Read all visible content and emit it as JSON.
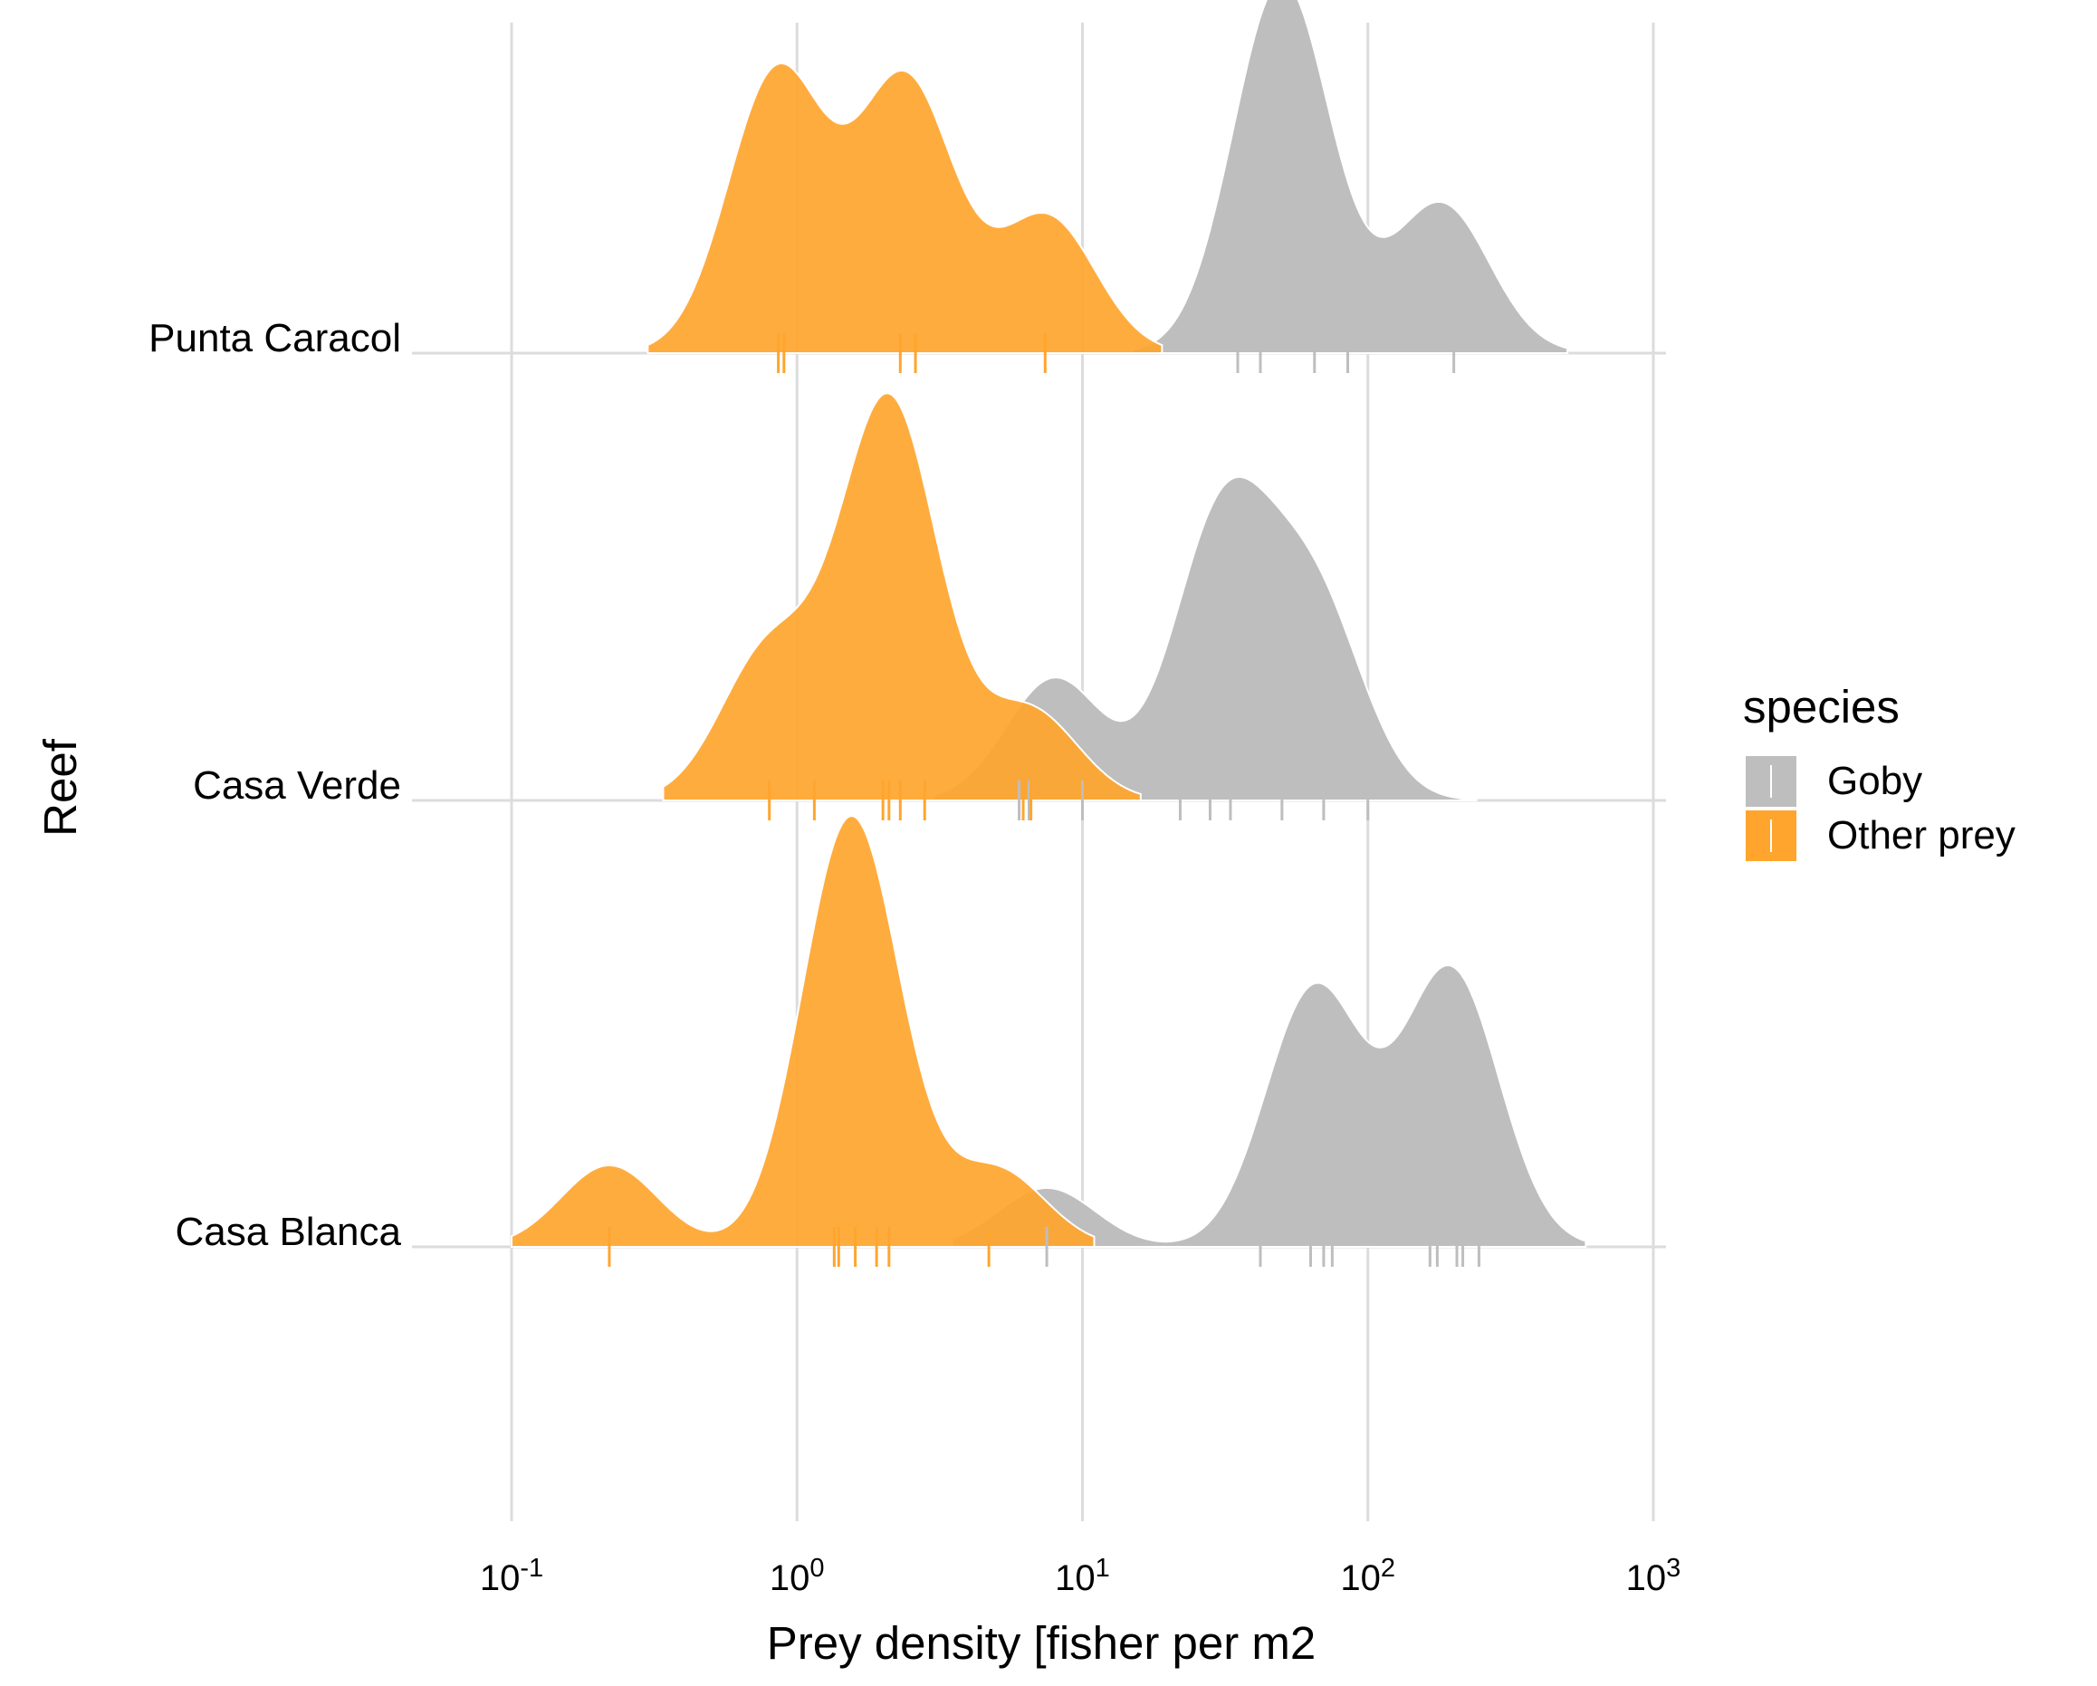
{
  "chart_data": {
    "type": "ridgeline",
    "title": "",
    "xlabel": "Prey density [fisher per m2",
    "ylabel": "Reef",
    "x_scale": "log10",
    "xlim": [
      0.1,
      1000
    ],
    "x_ticks": [
      {
        "value": 0.1,
        "base": "10",
        "exp": "-1"
      },
      {
        "value": 1,
        "base": "10",
        "exp": "0"
      },
      {
        "value": 10,
        "base": "10",
        "exp": "1"
      },
      {
        "value": 100,
        "base": "10",
        "exp": "2"
      },
      {
        "value": 1000,
        "base": "10",
        "exp": "3"
      }
    ],
    "grid": true,
    "legend": {
      "title": "species",
      "position": "right",
      "entries": [
        {
          "label": "Goby",
          "color": "#bebebe"
        },
        {
          "label": "Other prey",
          "color": "#ffa52e"
        }
      ]
    },
    "colors": {
      "Goby": "#bebebe",
      "Other prey": "#ffa52e",
      "gridline": "#dcdcdc"
    },
    "reefs": [
      {
        "name": "Punta Caracol",
        "series": [
          {
            "species": "Goby",
            "density_peaks": [
              {
                "x": 50,
                "h": 0.82
              },
              {
                "x": 180,
                "h": 0.33
              }
            ],
            "range": [
              15,
              500
            ],
            "rug": [
              35,
              42,
              65,
              85,
              200
            ]
          },
          {
            "species": "Other prey",
            "density_peaks": [
              {
                "x": 0.85,
                "h": 0.62
              },
              {
                "x": 2.4,
                "h": 0.6
              },
              {
                "x": 7.5,
                "h": 0.3
              }
            ],
            "range": [
              0.3,
              19
            ],
            "rug": [
              0.86,
              0.9,
              2.3,
              2.6,
              7.4
            ]
          }
        ]
      },
      {
        "name": "Casa Verde",
        "series": [
          {
            "species": "Goby",
            "density_peaks": [
              {
                "x": 8,
                "h": 0.27
              },
              {
                "x": 31,
                "h": 0.62
              },
              {
                "x": 65,
                "h": 0.43
              }
            ],
            "range": [
              3,
              240
            ],
            "rug": [
              6,
              6.5,
              10,
              22,
              28,
              33,
              50,
              70,
              100
            ]
          },
          {
            "species": "Other prey",
            "density_peaks": [
              {
                "x": 0.8,
                "h": 0.33
              },
              {
                "x": 2.1,
                "h": 0.88
              },
              {
                "x": 6.5,
                "h": 0.2
              }
            ],
            "range": [
              0.34,
              16
            ],
            "rug": [
              0.8,
              1.15,
              2,
              2.1,
              2.3,
              2.8,
              6.2,
              6.6
            ]
          }
        ]
      },
      {
        "name": "Casa Blanca",
        "series": [
          {
            "species": "Goby",
            "density_peaks": [
              {
                "x": 7.5,
                "h": 0.13
              },
              {
                "x": 65,
                "h": 0.57
              },
              {
                "x": 195,
                "h": 0.61
              }
            ],
            "range": [
              3.5,
              580
            ],
            "rug": [
              7.5,
              42,
              63,
              70,
              75,
              165,
              175,
              205,
              215,
              245
            ]
          },
          {
            "species": "Other prey",
            "density_peaks": [
              {
                "x": 0.22,
                "h": 0.18
              },
              {
                "x": 1.55,
                "h": 0.95
              },
              {
                "x": 5,
                "h": 0.17
              }
            ],
            "range": [
              0.1,
              11
            ],
            "rug": [
              0.22,
              1.35,
              1.4,
              1.6,
              1.9,
              2.1,
              4.7
            ]
          }
        ]
      }
    ]
  }
}
